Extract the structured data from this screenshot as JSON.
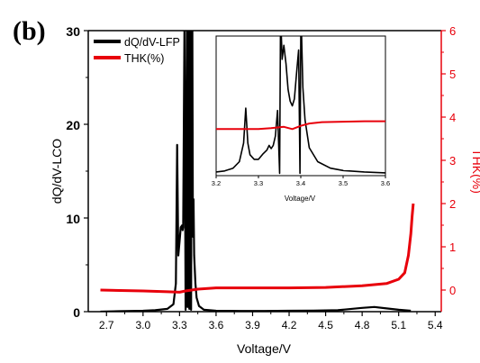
{
  "panel_label": "(b)",
  "colors": {
    "lfp": "#000000",
    "thk": "#e8000b",
    "axis": "#000000"
  },
  "chart_data": [
    {
      "id": "main",
      "type": "line",
      "xlabel": "Voltage/V",
      "ylabel": "dQ/dV-LCO",
      "y2label": "THK(%)",
      "xlim": [
        2.55,
        5.45
      ],
      "ylim": [
        0,
        30
      ],
      "y2lim": [
        -0.5,
        6
      ],
      "x_ticks": [
        "2.7",
        "3.0",
        "3.3",
        "3.6",
        "3.9",
        "4.2",
        "4.5",
        "4.8",
        "5.1",
        "5.4"
      ],
      "x_tick_values": [
        2.7,
        3.0,
        3.3,
        3.6,
        3.9,
        4.2,
        4.5,
        4.8,
        5.1,
        5.4
      ],
      "y_ticks": [
        "0",
        "10",
        "20",
        "30"
      ],
      "y_tick_values": [
        0,
        10,
        20,
        30
      ],
      "y2_ticks": [
        "0",
        "1",
        "2",
        "3",
        "4",
        "5",
        "6"
      ],
      "y2_tick_values": [
        0,
        1,
        2,
        3,
        4,
        5,
        6
      ],
      "legend": {
        "placement": "top-left",
        "entries": [
          "dQ/dV-LFP",
          "THK(%)"
        ]
      },
      "series": [
        {
          "name": "dQ/dV-LFP",
          "axis": "left",
          "x": [
            2.65,
            2.8,
            3.0,
            3.1,
            3.2,
            3.25,
            3.27,
            3.28,
            3.29,
            3.3,
            3.31,
            3.32,
            3.325,
            3.33,
            3.34,
            3.35,
            3.36,
            3.365,
            3.37,
            3.375,
            3.38,
            3.385,
            3.39,
            3.395,
            3.4,
            3.405,
            3.41,
            3.415,
            3.42,
            3.43,
            3.44,
            3.46,
            3.5,
            3.6,
            3.8,
            4.0,
            4.2,
            4.4,
            4.6,
            4.8,
            4.9,
            5.0,
            5.1,
            5.2
          ],
          "y": [
            0,
            0.05,
            0.1,
            0.15,
            0.3,
            0.8,
            3,
            17.8,
            6,
            7.5,
            9,
            9.2,
            8.7,
            9,
            30,
            0.2,
            30,
            0.5,
            30,
            30,
            0.3,
            30,
            30,
            0.2,
            30,
            30,
            8,
            12,
            6,
            3,
            1.5,
            0.6,
            0.2,
            0.1,
            0.08,
            0.08,
            0.1,
            0.12,
            0.15,
            0.4,
            0.5,
            0.35,
            0.2,
            0.1
          ]
        },
        {
          "name": "THK(%)",
          "axis": "right",
          "x": [
            2.65,
            3.0,
            3.2,
            3.3,
            3.35,
            3.4,
            3.45,
            3.6,
            3.9,
            4.2,
            4.5,
            4.8,
            5.0,
            5.1,
            5.15,
            5.18,
            5.2,
            5.21,
            5.22
          ],
          "y": [
            0,
            -0.02,
            -0.04,
            -0.05,
            -0.02,
            0.0,
            0.02,
            0.05,
            0.05,
            0.05,
            0.06,
            0.1,
            0.15,
            0.25,
            0.4,
            0.8,
            1.3,
            1.7,
            2.0
          ]
        }
      ]
    },
    {
      "id": "inset",
      "type": "line",
      "xlabel": "Voltage/V",
      "xlim": [
        3.2,
        3.6
      ],
      "ylim": [
        0,
        30
      ],
      "x_ticks": [
        "3.2",
        "3.3",
        "3.4",
        "3.5",
        "3.6"
      ],
      "x_tick_values": [
        3.2,
        3.3,
        3.4,
        3.5,
        3.6
      ],
      "series": [
        {
          "name": "dQ/dV-LFP",
          "x": [
            3.2,
            3.22,
            3.24,
            3.255,
            3.265,
            3.27,
            3.275,
            3.28,
            3.29,
            3.3,
            3.31,
            3.32,
            3.325,
            3.33,
            3.335,
            3.34,
            3.345,
            3.35,
            3.352,
            3.354,
            3.356,
            3.36,
            3.365,
            3.37,
            3.375,
            3.38,
            3.385,
            3.39,
            3.395,
            3.398,
            3.4,
            3.402,
            3.405,
            3.41,
            3.42,
            3.44,
            3.47,
            3.5,
            3.55,
            3.6
          ],
          "y": [
            0.8,
            1.0,
            1.6,
            3.0,
            7.0,
            14.5,
            7.0,
            4.5,
            3.5,
            3.5,
            4.6,
            5.5,
            6.5,
            5.8,
            6.5,
            8.5,
            14.0,
            0.5,
            30,
            30,
            25.0,
            28.0,
            24.0,
            18.5,
            16.0,
            15.0,
            16.5,
            22.0,
            27.0,
            0.5,
            30,
            30,
            19.0,
            12.0,
            6.0,
            3.0,
            1.6,
            1.1,
            0.8,
            0.6
          ]
        },
        {
          "name": "THK(%)",
          "x": [
            3.2,
            3.25,
            3.3,
            3.33,
            3.36,
            3.38,
            3.4,
            3.42,
            3.45,
            3.5,
            3.55,
            3.6
          ],
          "y": [
            10.0,
            10.0,
            10.0,
            10.2,
            10.5,
            10.0,
            10.7,
            11.2,
            11.5,
            11.6,
            11.7,
            11.7
          ]
        }
      ]
    }
  ]
}
